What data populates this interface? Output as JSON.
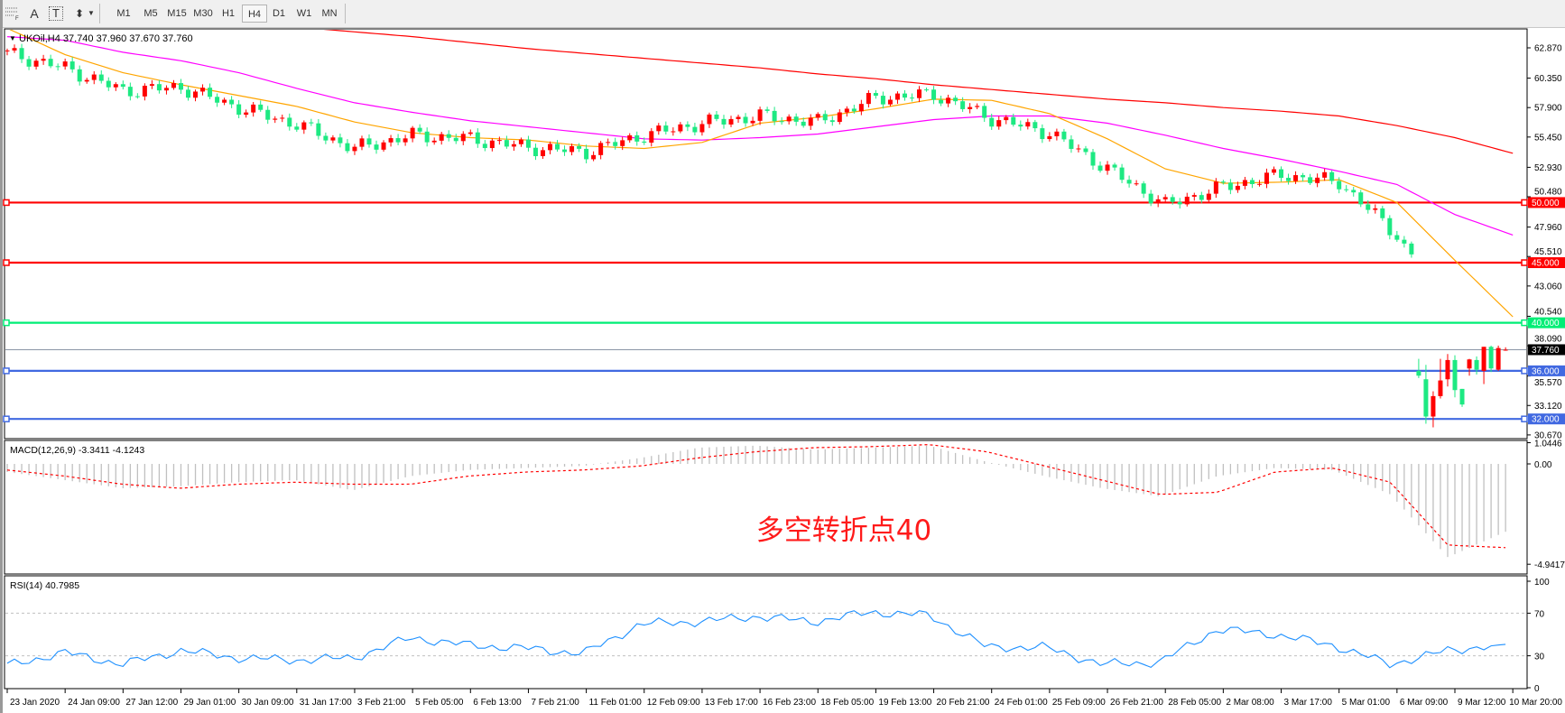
{
  "toolbar": {
    "icons": [
      "grid-icon",
      "text-icon",
      "text-label-icon",
      "arrows-icon",
      "dropdown-arrow-icon"
    ],
    "text_icon_label": "A",
    "text_label_icon_label": "T",
    "timeframes": [
      "M1",
      "M5",
      "M15",
      "M30",
      "H1",
      "H4",
      "D1",
      "W1",
      "MN"
    ],
    "selected_timeframe": "H4"
  },
  "chart": {
    "header": "UKOil,H4  37.740 37.960 37.670 37.760",
    "symbol": "UKOil",
    "timeframe": "H4",
    "ohlc": {
      "open": 37.74,
      "high": 37.96,
      "low": 37.67,
      "close": 37.76
    },
    "price_axis_labels": [
      "62.870",
      "60.350",
      "57.900",
      "55.450",
      "52.930",
      "50.480",
      "47.960",
      "45.510",
      "43.060",
      "40.540",
      "38.090",
      "35.570",
      "33.120",
      "30.670"
    ],
    "current_price_label": "37.760",
    "horizontal_lines": [
      {
        "label": "50.000",
        "price": 50.0,
        "color": "#ff0000"
      },
      {
        "label": "45.000",
        "price": 45.0,
        "color": "#ff0000"
      },
      {
        "label": "40.000",
        "price": 40.0,
        "color": "#00ee76"
      },
      {
        "label": "36.000",
        "price": 36.0,
        "color": "#4169e1"
      },
      {
        "label": "32.000",
        "price": 32.0,
        "color": "#4169e1"
      }
    ],
    "annotation": "多空转折点40",
    "annotation_color": "#ff1a1a",
    "colors": {
      "bull_candle": "#ff0000",
      "bear_candle": "#1de982",
      "ma_fast": "#ffa500",
      "ma_mid": "#ff00ff",
      "ma_slow": "#ff0000",
      "current_line": "#8a96a6"
    }
  },
  "chart_data": {
    "type": "candlestick",
    "ylim": [
      30.67,
      62.87
    ],
    "date_labels": [
      "23 Jan 2020",
      "24 Jan 09:00",
      "27 Jan 12:00",
      "29 Jan 01:00",
      "30 Jan 09:00",
      "31 Jan 17:00",
      "3 Feb 21:00",
      "5 Feb 05:00",
      "6 Feb 13:00",
      "7 Feb 21:00",
      "11 Feb 01:00",
      "12 Feb 09:00",
      "13 Feb 17:00",
      "16 Feb 23:00",
      "18 Feb 05:00",
      "19 Feb 13:00",
      "20 Feb 21:00",
      "24 Feb 01:00",
      "25 Feb 09:00",
      "26 Feb 21:00",
      "28 Feb 05:00",
      "2 Mar 08:00",
      "3 Mar 17:00",
      "5 Mar 01:00",
      "6 Mar 09:00",
      "9 Mar 12:00",
      "10 Mar 20:00"
    ],
    "close_at_date_labels": [
      62.4,
      61.2,
      59.3,
      59.6,
      57.9,
      56.5,
      54.5,
      55.6,
      55.3,
      54.6,
      54.2,
      55.6,
      56.6,
      57.2,
      56.7,
      58.7,
      59.0,
      57.0,
      55.8,
      52.8,
      49.8,
      51.3,
      52.3,
      51.7,
      47.3
    ],
    "closes_after_6_mar": [
      46.3,
      45.6
    ],
    "last_candles": [
      {
        "o": 36.0,
        "h": 37.0,
        "l": 35.4,
        "c": 35.6
      },
      {
        "o": 35.3,
        "h": 36.5,
        "l": 31.6,
        "c": 32.2
      },
      {
        "o": 32.2,
        "h": 34.3,
        "l": 31.3,
        "c": 33.9
      },
      {
        "o": 33.9,
        "h": 37.0,
        "l": 33.7,
        "c": 35.2
      },
      {
        "o": 35.3,
        "h": 37.4,
        "l": 34.7,
        "c": 36.9
      },
      {
        "o": 36.9,
        "h": 37.3,
        "l": 33.8,
        "c": 34.4
      },
      {
        "o": 34.5,
        "h": 34.5,
        "l": 33.0,
        "c": 33.2
      },
      {
        "o": 36.2,
        "h": 37.0,
        "l": 35.6,
        "c": 36.95
      },
      {
        "o": 36.9,
        "h": 37.2,
        "l": 35.7,
        "c": 36.1
      },
      {
        "o": 36.0,
        "h": 38.0,
        "l": 34.9,
        "c": 38.0
      },
      {
        "o": 38.0,
        "h": 38.1,
        "l": 35.9,
        "c": 36.2
      },
      {
        "o": 36.1,
        "h": 38.1,
        "l": 36.0,
        "c": 37.9
      },
      {
        "o": 37.74,
        "h": 37.96,
        "l": 37.67,
        "c": 37.76
      }
    ],
    "ma_fast_at_date_labels": [
      64.5,
      62.3,
      60.8,
      59.8,
      58.9,
      58.0,
      56.7,
      55.8,
      55.4,
      55.2,
      54.7,
      54.5,
      55.0,
      56.6,
      57.1,
      57.8,
      58.6,
      58.5,
      57.4,
      55.3,
      52.8,
      51.6,
      51.7,
      51.9,
      50.0,
      45.2,
      40.5
    ],
    "ma_mid_at_date_labels": [
      63.8,
      63.5,
      62.5,
      61.8,
      60.8,
      59.5,
      58.3,
      57.5,
      56.8,
      56.3,
      55.8,
      55.3,
      55.2,
      55.4,
      55.7,
      56.3,
      56.9,
      57.2,
      57.2,
      56.6,
      55.6,
      54.5,
      53.6,
      52.6,
      51.5,
      49.0,
      47.3
    ],
    "ma_slow_at_date_labels": [
      66.9,
      66.4,
      65.9,
      65.5,
      65.1,
      64.6,
      64.2,
      63.8,
      63.3,
      62.8,
      62.4,
      62.0,
      61.6,
      61.2,
      60.7,
      60.3,
      59.8,
      59.4,
      59.0,
      58.6,
      58.3,
      57.9,
      57.6,
      57.2,
      56.4,
      55.4,
      54.1
    ],
    "macd": {
      "label": "MACD(12,26,9) -3.3411 -4.1243",
      "axis_labels": [
        "1.0446",
        "0.00",
        "-4.9417"
      ],
      "ylim": [
        -4.9417,
        1.0446
      ],
      "histogram_at_date_labels": [
        -0.4,
        -0.8,
        -1.2,
        -1.1,
        -0.9,
        -0.8,
        -1.3,
        -0.6,
        -0.3,
        -0.2,
        -0.1,
        0.3,
        0.8,
        0.9,
        0.7,
        0.8,
        0.9,
        0.1,
        -0.6,
        -1.2,
        -1.6,
        -0.6,
        -0.2,
        -0.3,
        -1.5,
        -4.6,
        -3.3411
      ],
      "signal_at_date_labels": [
        -0.3,
        -0.6,
        -1.0,
        -1.2,
        -1.0,
        -0.9,
        -1.0,
        -1.0,
        -0.6,
        -0.4,
        -0.3,
        -0.1,
        0.3,
        0.6,
        0.8,
        0.85,
        0.95,
        0.6,
        -0.1,
        -0.8,
        -1.5,
        -1.4,
        -0.4,
        -0.2,
        -0.9,
        -4.0,
        -4.1243
      ]
    },
    "rsi": {
      "label": "RSI(14) 40.7985",
      "axis_labels": [
        "100",
        "70",
        "30",
        "0"
      ],
      "levels": [
        70,
        30
      ],
      "ylim": [
        0,
        100
      ],
      "values_at_date_labels": [
        21,
        33,
        22,
        35,
        28,
        26,
        28,
        47,
        40,
        37,
        32,
        60,
        62,
        67,
        62,
        71,
        68,
        38,
        38,
        22,
        24,
        55,
        50,
        40,
        22,
        35,
        40.8
      ]
    }
  }
}
